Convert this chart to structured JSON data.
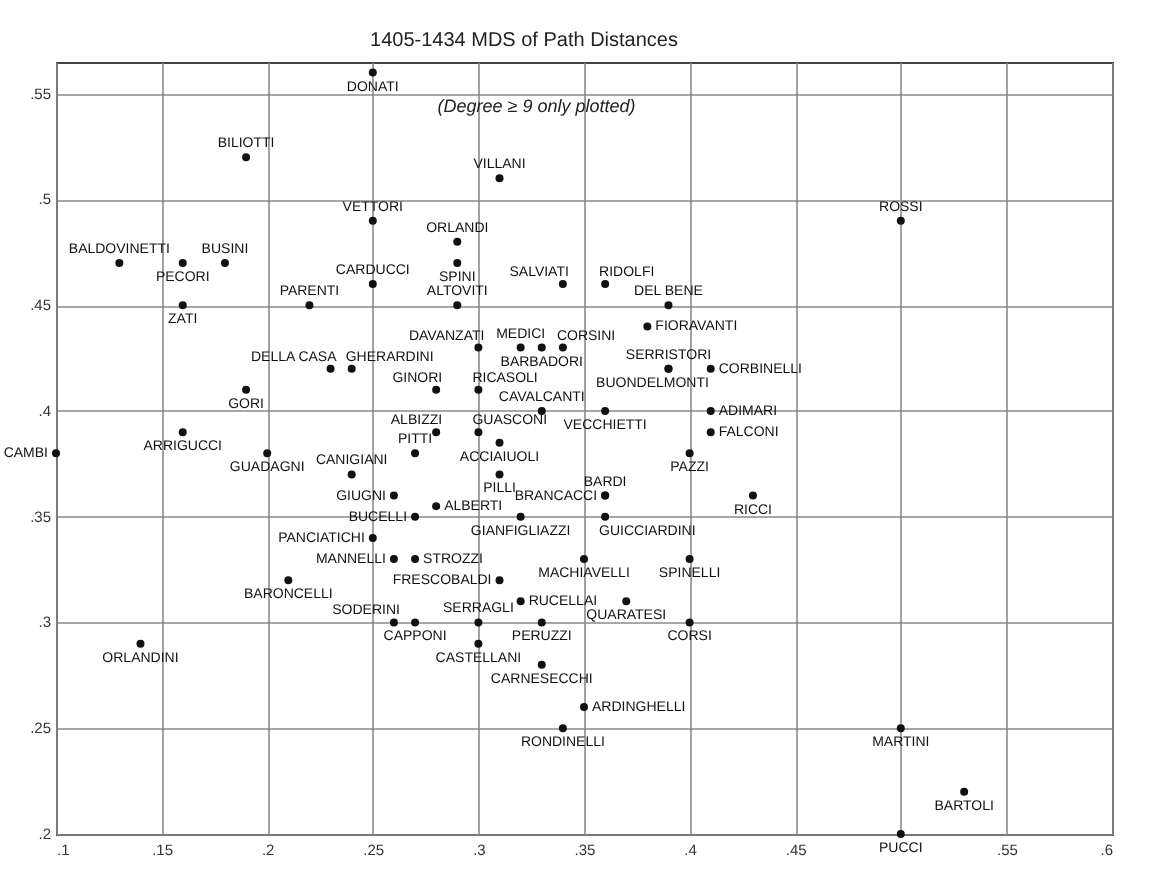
{
  "chart_data": {
    "type": "scatter",
    "title": "1405-1434 MDS of Path Distances",
    "color": "#111111",
    "marker": "circle",
    "grid": true,
    "xlim": [
      0.1,
      0.6
    ],
    "ylim": [
      0.2,
      0.565
    ],
    "xticks": [
      {
        "value": 0.1,
        "label": ".1"
      },
      {
        "value": 0.15,
        "label": ".15"
      },
      {
        "value": 0.2,
        "label": ".2"
      },
      {
        "value": 0.25,
        "label": ".25"
      },
      {
        "value": 0.3,
        "label": ".3"
      },
      {
        "value": 0.35,
        "label": ".35"
      },
      {
        "value": 0.4,
        "label": ".4"
      },
      {
        "value": 0.45,
        "label": ".45"
      },
      {
        "value": 0.5,
        "label": null
      },
      {
        "value": 0.55,
        "label": ".55"
      },
      {
        "value": 0.6,
        "label": ".6"
      }
    ],
    "yticks": [
      {
        "value": 0.2,
        "label": ".2"
      },
      {
        "value": 0.25,
        "label": ".25"
      },
      {
        "value": 0.3,
        "label": ".3"
      },
      {
        "value": 0.35,
        "label": ".35"
      },
      {
        "value": 0.4,
        "label": ".4"
      },
      {
        "value": 0.45,
        "label": ".45"
      },
      {
        "value": 0.5,
        "label": ".5"
      },
      {
        "value": 0.55,
        "label": ".55"
      }
    ],
    "x": [
      0.25,
      0.19,
      0.31,
      0.25,
      0.5,
      0.29,
      0.13,
      0.16,
      0.18,
      0.29,
      0.25,
      0.34,
      0.36,
      0.22,
      0.16,
      0.29,
      0.39,
      0.38,
      0.3,
      0.32,
      0.33,
      0.34,
      0.23,
      0.24,
      0.39,
      0.41,
      0.39,
      0.19,
      0.28,
      0.3,
      0.33,
      0.36,
      0.41,
      0.41,
      0.28,
      0.3,
      0.31,
      0.16,
      0.1,
      0.2,
      0.27,
      0.4,
      0.31,
      0.24,
      0.26,
      0.36,
      0.36,
      0.43,
      0.28,
      0.27,
      0.32,
      0.36,
      0.25,
      0.26,
      0.27,
      0.35,
      0.4,
      0.31,
      0.21,
      0.32,
      0.37,
      0.26,
      0.27,
      0.3,
      0.33,
      0.4,
      0.14,
      0.3,
      0.33,
      0.35,
      0.34,
      0.5,
      0.53,
      0.5
    ],
    "values": [
      0.56,
      0.52,
      0.51,
      0.49,
      0.49,
      0.48,
      0.47,
      0.47,
      0.47,
      0.47,
      0.46,
      0.46,
      0.46,
      0.45,
      0.45,
      0.45,
      0.45,
      0.44,
      0.43,
      0.43,
      0.43,
      0.43,
      0.42,
      0.42,
      0.42,
      0.42,
      0.42,
      0.41,
      0.41,
      0.41,
      0.4,
      0.4,
      0.4,
      0.39,
      0.39,
      0.39,
      0.385,
      0.39,
      0.38,
      0.38,
      0.38,
      0.38,
      0.37,
      0.37,
      0.36,
      0.36,
      0.36,
      0.36,
      0.355,
      0.35,
      0.35,
      0.35,
      0.34,
      0.33,
      0.33,
      0.33,
      0.33,
      0.32,
      0.32,
      0.31,
      0.31,
      0.3,
      0.3,
      0.3,
      0.3,
      0.3,
      0.29,
      0.29,
      0.28,
      0.26,
      0.25,
      0.25,
      0.22,
      0.2
    ],
    "annotations": [
      "(Degree ≥ 9 only plotted)",
      {
        "text": "DONATI",
        "x": 0.25,
        "y": 0.56
      },
      {
        "text": "BILIOTTI",
        "x": 0.19,
        "y": 0.52
      },
      {
        "text": "VILLANI",
        "x": 0.31,
        "y": 0.51
      },
      {
        "text": "VETTORI",
        "x": 0.25,
        "y": 0.49
      },
      {
        "text": "ROSSI",
        "x": 0.5,
        "y": 0.49
      },
      {
        "text": "ORLANDI",
        "x": 0.29,
        "y": 0.48
      },
      {
        "text": "BALDOVINETTI",
        "x": 0.13,
        "y": 0.47
      },
      {
        "text": "PECORI",
        "x": 0.16,
        "y": 0.47
      },
      {
        "text": "BUSINI",
        "x": 0.18,
        "y": 0.47
      },
      {
        "text": "SPINI",
        "x": 0.29,
        "y": 0.47
      },
      {
        "text": "CARDUCCI",
        "x": 0.25,
        "y": 0.46
      },
      {
        "text": "SALVIATI",
        "x": 0.34,
        "y": 0.46
      },
      {
        "text": "RIDOLFI",
        "x": 0.36,
        "y": 0.46
      },
      {
        "text": "PARENTI",
        "x": 0.22,
        "y": 0.45
      },
      {
        "text": "ZATI",
        "x": 0.16,
        "y": 0.45
      },
      {
        "text": "ALTOVITI",
        "x": 0.29,
        "y": 0.45
      },
      {
        "text": "DEL BENE",
        "x": 0.39,
        "y": 0.45
      },
      {
        "text": "FIORAVANTI",
        "x": 0.38,
        "y": 0.44
      },
      {
        "text": "DAVANZATI",
        "x": 0.3,
        "y": 0.43
      },
      {
        "text": "MEDICI",
        "x": 0.32,
        "y": 0.43
      },
      {
        "text": "BARBADORI",
        "x": 0.33,
        "y": 0.43
      },
      {
        "text": "CORSINI",
        "x": 0.34,
        "y": 0.43
      },
      {
        "text": "DELLA CASA",
        "x": 0.23,
        "y": 0.42
      },
      {
        "text": "GHERARDINI",
        "x": 0.24,
        "y": 0.42
      },
      {
        "text": "SERRISTORI",
        "x": 0.39,
        "y": 0.42
      },
      {
        "text": "CORBINELLI",
        "x": 0.41,
        "y": 0.42
      },
      {
        "text": "BUONDELMONTI",
        "x": 0.39,
        "y": 0.42
      },
      {
        "text": "GORI",
        "x": 0.19,
        "y": 0.41
      },
      {
        "text": "GINORI",
        "x": 0.28,
        "y": 0.41
      },
      {
        "text": "RICASOLI",
        "x": 0.3,
        "y": 0.41
      },
      {
        "text": "CAVALCANTI",
        "x": 0.33,
        "y": 0.4
      },
      {
        "text": "VECCHIETTI",
        "x": 0.36,
        "y": 0.4
      },
      {
        "text": "ADIMARI",
        "x": 0.41,
        "y": 0.4
      },
      {
        "text": "FALCONI",
        "x": 0.41,
        "y": 0.39
      },
      {
        "text": "ALBIZZI",
        "x": 0.28,
        "y": 0.39
      },
      {
        "text": "GUASCONI",
        "x": 0.3,
        "y": 0.39
      },
      {
        "text": "ACCIAIUOLI",
        "x": 0.31,
        "y": 0.385
      },
      {
        "text": "ARRIGUCCI",
        "x": 0.16,
        "y": 0.39
      },
      {
        "text": "CAMBI",
        "x": 0.1,
        "y": 0.38
      },
      {
        "text": "GUADAGNI",
        "x": 0.2,
        "y": 0.38
      },
      {
        "text": "PITTI",
        "x": 0.27,
        "y": 0.38
      },
      {
        "text": "PAZZI",
        "x": 0.4,
        "y": 0.38
      },
      {
        "text": "PILLI",
        "x": 0.31,
        "y": 0.37
      },
      {
        "text": "CANIGIANI",
        "x": 0.24,
        "y": 0.37
      },
      {
        "text": "GIUGNI",
        "x": 0.26,
        "y": 0.36
      },
      {
        "text": "BRANCACCI",
        "x": 0.36,
        "y": 0.36
      },
      {
        "text": "BARDI",
        "x": 0.36,
        "y": 0.36
      },
      {
        "text": "RICCI",
        "x": 0.43,
        "y": 0.36
      },
      {
        "text": "ALBERTI",
        "x": 0.28,
        "y": 0.355
      },
      {
        "text": "BUCELLI",
        "x": 0.27,
        "y": 0.35
      },
      {
        "text": "GIANFIGLIAZZI",
        "x": 0.32,
        "y": 0.35
      },
      {
        "text": "GUICCIARDINI",
        "x": 0.36,
        "y": 0.35
      },
      {
        "text": "PANCIATICHI",
        "x": 0.25,
        "y": 0.34
      },
      {
        "text": "MANNELLI",
        "x": 0.26,
        "y": 0.33
      },
      {
        "text": "STROZZI",
        "x": 0.27,
        "y": 0.33
      },
      {
        "text": "MACHIAVELLI",
        "x": 0.35,
        "y": 0.33
      },
      {
        "text": "SPINELLI",
        "x": 0.4,
        "y": 0.33
      },
      {
        "text": "FRESCOBALDI",
        "x": 0.31,
        "y": 0.32
      },
      {
        "text": "BARONCELLI",
        "x": 0.21,
        "y": 0.32
      },
      {
        "text": "RUCELLAI",
        "x": 0.32,
        "y": 0.31
      },
      {
        "text": "QUARATESI",
        "x": 0.37,
        "y": 0.31
      },
      {
        "text": "SODERINI",
        "x": 0.26,
        "y": 0.3
      },
      {
        "text": "CAPPONI",
        "x": 0.27,
        "y": 0.3
      },
      {
        "text": "SERRAGLI",
        "x": 0.3,
        "y": 0.3
      },
      {
        "text": "PERUZZI",
        "x": 0.33,
        "y": 0.3
      },
      {
        "text": "CORSI",
        "x": 0.4,
        "y": 0.3
      },
      {
        "text": "ORLANDINI",
        "x": 0.14,
        "y": 0.29
      },
      {
        "text": "CASTELLANI",
        "x": 0.3,
        "y": 0.29
      },
      {
        "text": "CARNESECCHI",
        "x": 0.33,
        "y": 0.28
      },
      {
        "text": "ARDINGHELLI",
        "x": 0.35,
        "y": 0.26
      },
      {
        "text": "RONDINELLI",
        "x": 0.34,
        "y": 0.25
      },
      {
        "text": "MARTINI",
        "x": 0.5,
        "y": 0.25
      },
      {
        "text": "BARTOLI",
        "x": 0.53,
        "y": 0.22
      },
      {
        "text": "PUCCI",
        "x": 0.5,
        "y": 0.2
      }
    ]
  }
}
